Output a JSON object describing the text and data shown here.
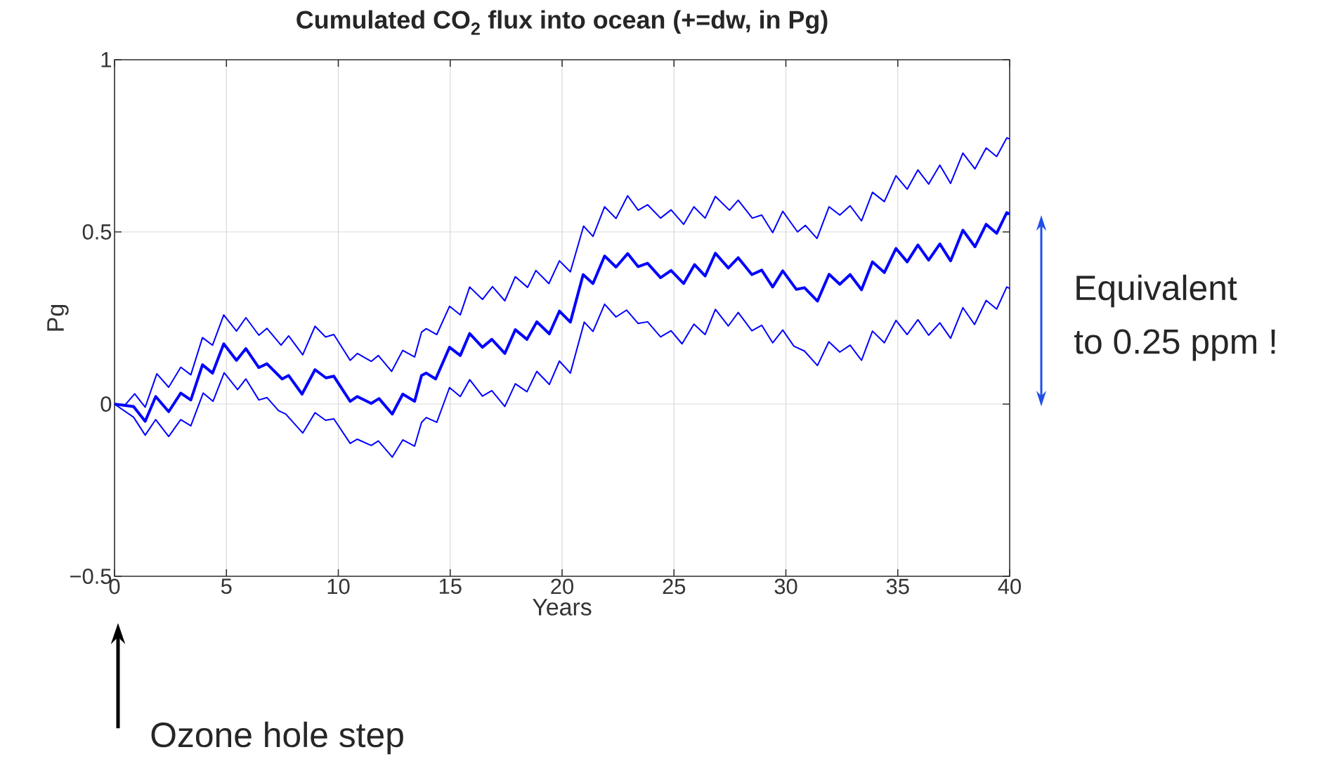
{
  "chart_data": {
    "type": "line",
    "title": "Cumulated CO$_{2}$ flux into ocean (+=dw, in Pg)",
    "xlabel": "Years",
    "ylabel": "Pg",
    "xlim": [
      0,
      40
    ],
    "ylim": [
      -0.5,
      1
    ],
    "xticks": [
      0,
      5,
      10,
      15,
      20,
      25,
      30,
      35,
      40
    ],
    "yticks": [
      {
        "value": -0.5,
        "label": "−0.5"
      },
      0,
      0.5,
      1
    ],
    "grid": true,
    "line_style": "solid",
    "annotations": [
      "Equivalent",
      "to 0.25 ppm !",
      "Ozone hole step"
    ],
    "series": [
      {
        "color": "#0000ff",
        "x": [
          0,
          0.85,
          1.37,
          1.84,
          2.42,
          2.96,
          3.41,
          3.93,
          4.38,
          4.88,
          5.45,
          5.87,
          6.45,
          6.81,
          7.49,
          7.78,
          8.38,
          8.96,
          9.45,
          9.8,
          10.53,
          10.85,
          11.47,
          11.82,
          12.41,
          12.88,
          13.41,
          13.72,
          13.93,
          14.35,
          14.97,
          15.45,
          15.87,
          16.44,
          16.86,
          17.44,
          17.91,
          18.43,
          18.87,
          19.43,
          19.88,
          20.37,
          20.94,
          21.38,
          21.9,
          22.41,
          22.93,
          23.4,
          23.82,
          24.4,
          24.87,
          25.43,
          25.92,
          26.39,
          26.85,
          27.43,
          27.87,
          28.48,
          28.92,
          29.41,
          29.86,
          30.47,
          30.83,
          31.41,
          31.93,
          32.41,
          32.87,
          33.38,
          33.87,
          34.4,
          34.92,
          35.42,
          35.9,
          36.38,
          36.88,
          37.36,
          37.91,
          38.45,
          38.95,
          39.42,
          39.87,
          40
        ],
        "values": [
          0,
          -0.007,
          -0.05,
          0.022,
          -0.022,
          0.032,
          0.012,
          0.114,
          0.09,
          0.175,
          0.127,
          0.161,
          0.106,
          0.117,
          0.073,
          0.083,
          0.029,
          0.1,
          0.076,
          0.081,
          0.008,
          0.022,
          0.002,
          0.016,
          -0.029,
          0.029,
          0.008,
          0.083,
          0.09,
          0.073,
          0.165,
          0.141,
          0.205,
          0.165,
          0.188,
          0.147,
          0.216,
          0.188,
          0.239,
          0.204,
          0.27,
          0.238,
          0.376,
          0.35,
          0.43,
          0.398,
          0.437,
          0.399,
          0.409,
          0.367,
          0.388,
          0.35,
          0.405,
          0.372,
          0.438,
          0.395,
          0.425,
          0.376,
          0.389,
          0.34,
          0.387,
          0.333,
          0.338,
          0.299,
          0.377,
          0.348,
          0.376,
          0.332,
          0.413,
          0.382,
          0.452,
          0.413,
          0.462,
          0.418,
          0.465,
          0.416,
          0.505,
          0.457,
          0.522,
          0.496,
          0.556,
          0.552
        ]
      },
      {
        "color": "#0000ff",
        "x": [
          0,
          0.48,
          0.9,
          1.37,
          1.89,
          2.42,
          2.96,
          3.41,
          3.93,
          4.38,
          4.88,
          5.45,
          5.87,
          6.45,
          6.81,
          7.44,
          7.78,
          8.41,
          8.96,
          9.43,
          9.8,
          10.53,
          10.85,
          11.47,
          11.79,
          12.38,
          12.88,
          13.41,
          13.72,
          13.93,
          14.4,
          14.97,
          15.45,
          15.87,
          16.44,
          16.89,
          17.44,
          17.91,
          18.46,
          18.83,
          19.41,
          19.88,
          20.37,
          20.96,
          21.38,
          21.9,
          22.41,
          22.93,
          23.4,
          23.82,
          24.4,
          24.87,
          25.43,
          25.89,
          26.39,
          26.85,
          27.48,
          27.87,
          28.5,
          28.92,
          29.41,
          29.86,
          30.52,
          30.87,
          31.39,
          31.93,
          32.41,
          32.87,
          33.38,
          33.87,
          34.4,
          34.92,
          35.42,
          35.9,
          36.38,
          36.88,
          37.36,
          37.91,
          38.45,
          38.95,
          39.42,
          39.87,
          40
        ],
        "values": [
          0,
          -0.002,
          0.03,
          -0.009,
          0.088,
          0.049,
          0.107,
          0.085,
          0.193,
          0.171,
          0.259,
          0.212,
          0.251,
          0.2,
          0.22,
          0.171,
          0.198,
          0.143,
          0.226,
          0.195,
          0.202,
          0.127,
          0.147,
          0.124,
          0.141,
          0.095,
          0.156,
          0.137,
          0.209,
          0.219,
          0.202,
          0.284,
          0.259,
          0.34,
          0.304,
          0.341,
          0.3,
          0.37,
          0.339,
          0.388,
          0.35,
          0.416,
          0.384,
          0.517,
          0.487,
          0.573,
          0.539,
          0.605,
          0.563,
          0.579,
          0.54,
          0.564,
          0.522,
          0.573,
          0.54,
          0.603,
          0.563,
          0.592,
          0.54,
          0.549,
          0.498,
          0.56,
          0.5,
          0.519,
          0.481,
          0.573,
          0.549,
          0.576,
          0.532,
          0.615,
          0.588,
          0.663,
          0.624,
          0.68,
          0.639,
          0.694,
          0.641,
          0.729,
          0.683,
          0.744,
          0.719,
          0.773,
          0.77
        ]
      },
      {
        "color": "#0000ff",
        "x": [
          0,
          0.85,
          1.37,
          1.84,
          2.42,
          2.96,
          3.41,
          3.96,
          4.4,
          4.9,
          5.5,
          5.87,
          6.45,
          6.81,
          7.33,
          7.65,
          8.41,
          8.96,
          9.43,
          9.8,
          10.53,
          10.85,
          11.47,
          11.79,
          12.41,
          12.88,
          13.41,
          13.72,
          13.93,
          14.4,
          14.97,
          15.45,
          15.87,
          16.44,
          16.86,
          17.44,
          17.91,
          18.43,
          18.87,
          19.43,
          19.88,
          20.37,
          20.99,
          21.38,
          21.9,
          22.41,
          22.88,
          23.4,
          23.82,
          24.4,
          24.87,
          25.36,
          25.89,
          26.39,
          26.85,
          27.43,
          27.87,
          28.48,
          28.92,
          29.41,
          29.86,
          30.36,
          30.83,
          31.41,
          31.92,
          32.41,
          32.87,
          33.38,
          33.87,
          34.4,
          34.92,
          35.42,
          35.9,
          36.38,
          36.88,
          37.36,
          37.91,
          38.43,
          38.95,
          39.42,
          39.87,
          40
        ],
        "values": [
          0,
          -0.038,
          -0.09,
          -0.045,
          -0.094,
          -0.045,
          -0.063,
          0.032,
          0.008,
          0.091,
          0.042,
          0.073,
          0.012,
          0.019,
          -0.019,
          -0.029,
          -0.084,
          -0.025,
          -0.047,
          -0.043,
          -0.114,
          -0.102,
          -0.12,
          -0.107,
          -0.154,
          -0.104,
          -0.122,
          -0.053,
          -0.039,
          -0.053,
          0.048,
          0.022,
          0.071,
          0.023,
          0.039,
          -0.007,
          0.059,
          0.036,
          0.095,
          0.057,
          0.125,
          0.09,
          0.238,
          0.211,
          0.29,
          0.253,
          0.273,
          0.234,
          0.239,
          0.195,
          0.213,
          0.175,
          0.232,
          0.202,
          0.275,
          0.227,
          0.266,
          0.213,
          0.229,
          0.178,
          0.215,
          0.168,
          0.154,
          0.112,
          0.181,
          0.151,
          0.171,
          0.127,
          0.212,
          0.178,
          0.243,
          0.202,
          0.245,
          0.2,
          0.236,
          0.191,
          0.28,
          0.231,
          0.301,
          0.276,
          0.34,
          0.336
        ]
      }
    ]
  }
}
